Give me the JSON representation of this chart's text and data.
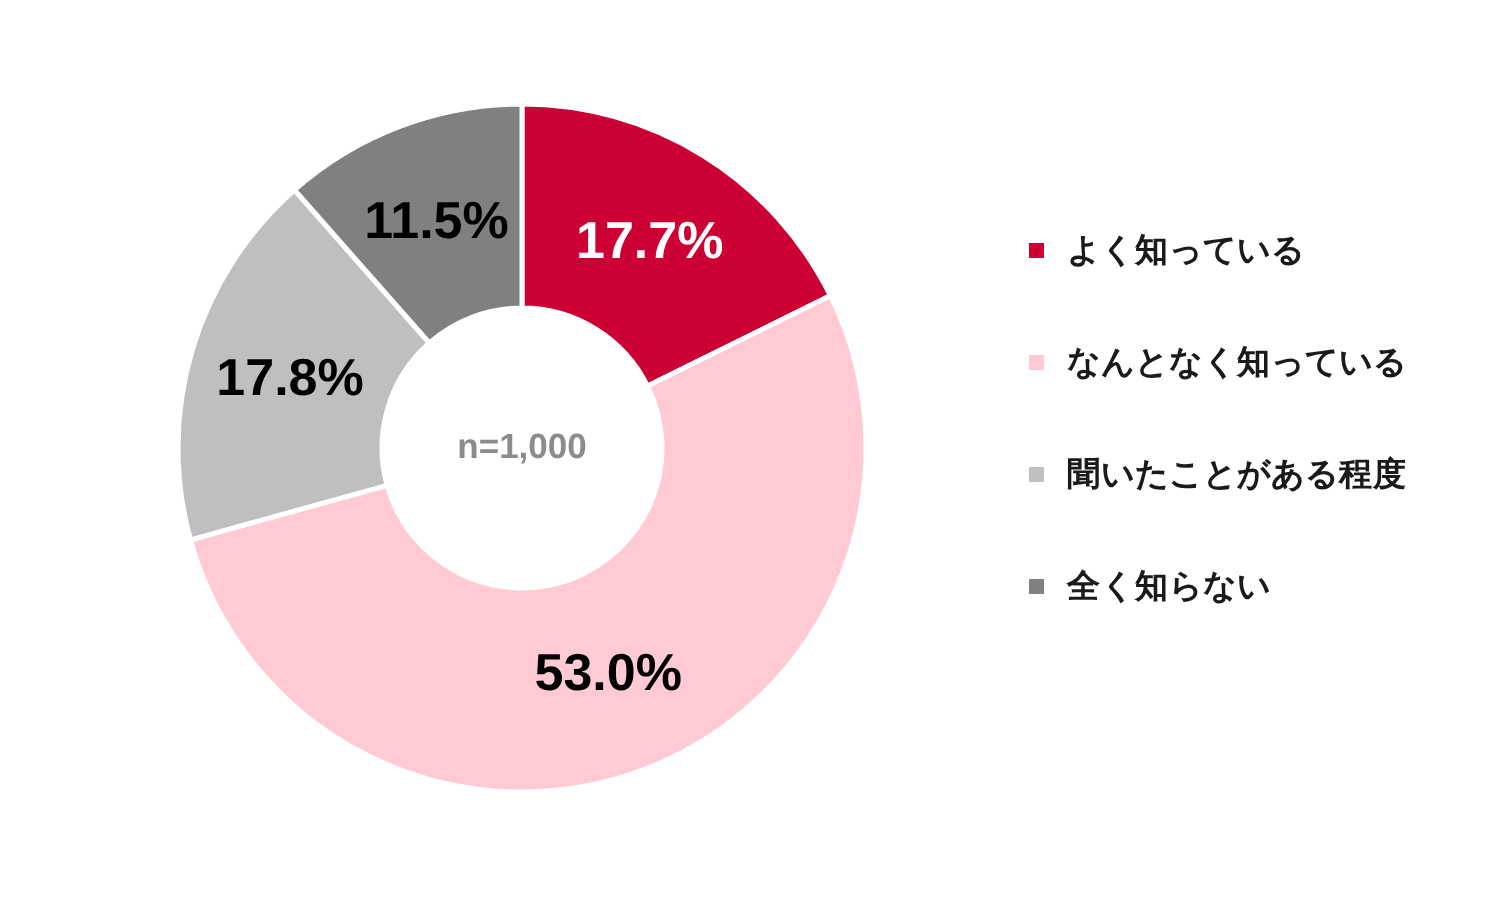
{
  "chart_data": {
    "type": "donut",
    "categories": [
      "よく知っている",
      "なんとなく知っている",
      "聞いたことがある程度",
      "全く知らない"
    ],
    "values": [
      17.7,
      53.0,
      17.8,
      11.5
    ],
    "colors": [
      "#cc0033",
      "#ffcad4",
      "#bfbfbf",
      "#808080"
    ],
    "value_labels": [
      "17.7%",
      "53.0%",
      "17.8%",
      "11.5%"
    ],
    "annotations": [
      "n=1,000"
    ],
    "legend": "right"
  }
}
